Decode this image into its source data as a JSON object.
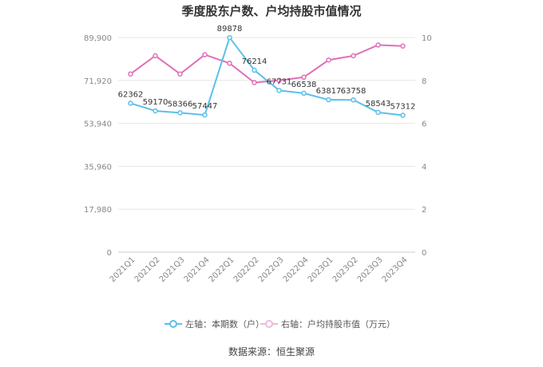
{
  "chart_data": {
    "type": "line",
    "title": "季度股东户数、户均持股市值情况",
    "categories": [
      "2021Q1",
      "2021Q2",
      "2021Q3",
      "2021Q4",
      "2022Q1",
      "2022Q2",
      "2022Q3",
      "2022Q4",
      "2023Q1",
      "2023Q2",
      "2023Q3",
      "2023Q4"
    ],
    "left_axis": {
      "ticks": [
        "0",
        "17,980",
        "35,960",
        "53,940",
        "71,920",
        "89,900"
      ],
      "min": 0,
      "max": 89900
    },
    "right_axis": {
      "ticks": [
        "0",
        "2",
        "4",
        "6",
        "8",
        "10"
      ],
      "min": 0,
      "max": 10
    },
    "series": [
      {
        "name": "左轴：本期数（户）",
        "axis": "left",
        "color": "#5bc0eb",
        "values": [
          62362,
          59170,
          58366,
          57447,
          89878,
          76214,
          67731,
          66538,
          63817,
          63758,
          58543,
          57312
        ],
        "labels": [
          "62362",
          "59170",
          "58366",
          "57447",
          "89878",
          "76214",
          "67731",
          "66538",
          "63817",
          "63758",
          "58543",
          "57312"
        ]
      },
      {
        "name": "右轴：户均持股市值（万元）",
        "axis": "right",
        "color": "#e070b8",
        "values": [
          8.3,
          9.15,
          8.3,
          9.2,
          8.8,
          7.9,
          8.0,
          8.15,
          8.95,
          9.15,
          9.65,
          9.6
        ]
      }
    ],
    "grid": true,
    "legend_position": "bottom"
  },
  "source": {
    "label": "数据来源：",
    "value": "恒生聚源"
  }
}
